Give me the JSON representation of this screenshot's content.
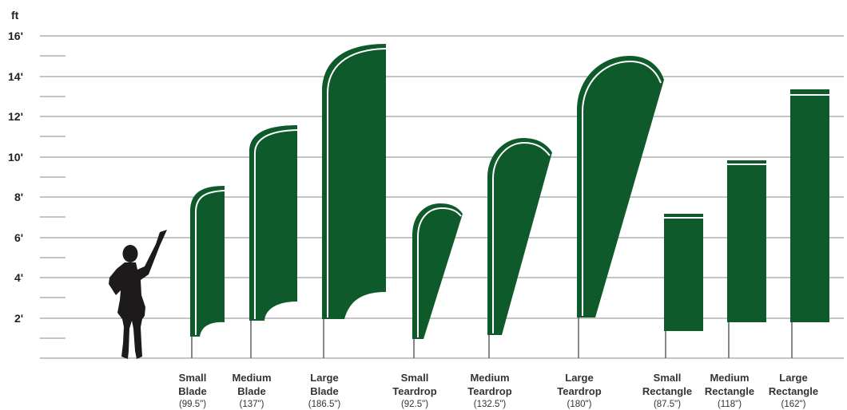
{
  "colors": {
    "flag": "#0f5a2b",
    "text": "#222222",
    "grid": "#8a8a8a"
  },
  "chart": {
    "unit_label": "ft",
    "y_ticks": [
      "16'",
      "14'",
      "12'",
      "10'",
      "8'",
      "6'",
      "4'",
      "2'"
    ]
  },
  "person": {
    "icon": "person-pointing-icon"
  },
  "flags": [
    {
      "name": "Small",
      "type": "Blade",
      "size": "(99.5\")"
    },
    {
      "name": "Medium",
      "type": "Blade",
      "size": "(137\")"
    },
    {
      "name": "Large",
      "type": "Blade",
      "size": "(186.5\")"
    },
    {
      "name": "Small",
      "type": "Teardrop",
      "size": "(92.5\")"
    },
    {
      "name": "Medium",
      "type": "Teardrop",
      "size": "(132.5\")"
    },
    {
      "name": "Large",
      "type": "Teardrop",
      "size": "(180\")"
    },
    {
      "name": "Small",
      "type": "Rectangle",
      "size": "(87.5\")"
    },
    {
      "name": "Medium",
      "type": "Rectangle",
      "size": "(118\")"
    },
    {
      "name": "Large",
      "type": "Rectangle",
      "size": "(162\")"
    }
  ]
}
